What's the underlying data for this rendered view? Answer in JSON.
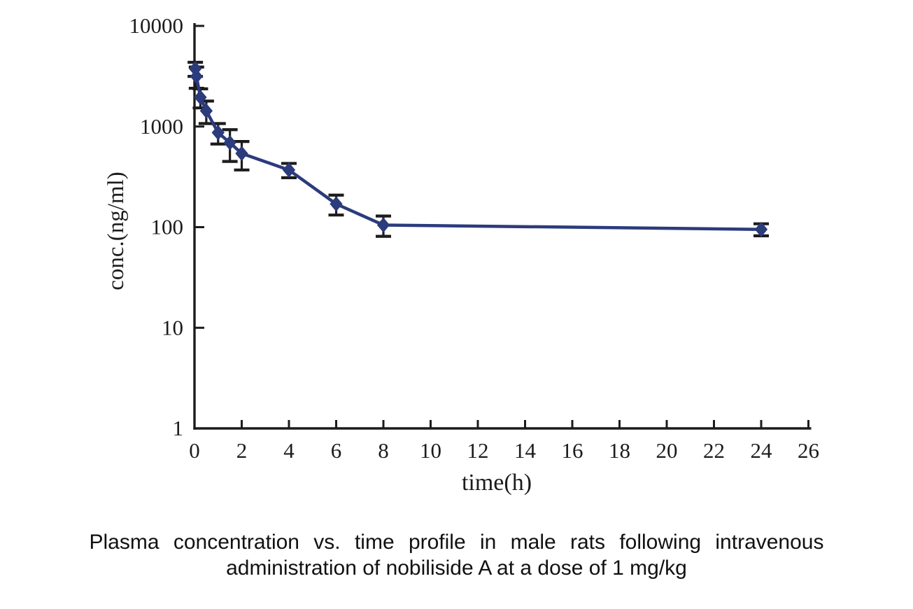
{
  "figure": {
    "caption": {
      "line1": "Plasma concentration vs. time profile in male rats following intravenous",
      "line2": "administration of nobiliside A at a dose of 1 mg/kg"
    }
  },
  "chart_data": {
    "type": "line",
    "title": "",
    "xlabel": "time(h)",
    "ylabel": "conc.(ng/ml)",
    "x_scale": "linear",
    "y_scale": "log10",
    "xlim": [
      0,
      26
    ],
    "ylim": [
      1,
      10000
    ],
    "x_ticks": [
      0,
      2,
      4,
      6,
      8,
      10,
      12,
      14,
      16,
      18,
      20,
      22,
      24,
      26
    ],
    "y_ticks": [
      1,
      10,
      100,
      1000,
      10000
    ],
    "grid": false,
    "legend_position": "none",
    "colors": {
      "series": "#2b3b7c",
      "error_bars": "#1c1c1c",
      "axis": "#1c1c1c",
      "background": "#ffffff"
    },
    "series": [
      {
        "name": "nobiliside A 1 mg/kg IV, male rats",
        "marker": "diamond",
        "x": [
          0.033,
          0.083,
          0.25,
          0.5,
          1,
          1.5,
          2,
          4,
          6,
          8,
          24
        ],
        "y": [
          3750,
          3150,
          1950,
          1430,
          870,
          690,
          540,
          370,
          170,
          105,
          95
        ],
        "y_err": [
          600,
          750,
          420,
          360,
          200,
          240,
          170,
          60,
          38,
          24,
          13
        ]
      }
    ]
  }
}
